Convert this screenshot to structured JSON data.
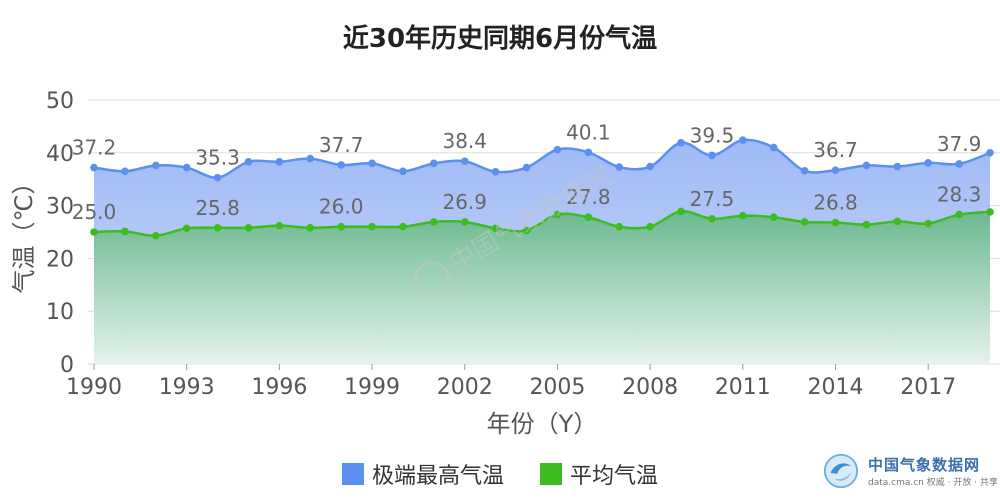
{
  "watermark": "中国气象数据网",
  "brand": {
    "name": "中国气象数据网",
    "url": "data.cma.cn 权威 · 开放 · 共享"
  },
  "colors": {
    "max_line": "#5b8ff0",
    "max_fill": "#aec3f5",
    "avg_line": "#3dbb1f",
    "avg_fill": "#7fc59f",
    "grid": "#dddddd",
    "axis_text": "#555555",
    "label_text": "#666666"
  },
  "chart_data": {
    "type": "area",
    "title": "近30年历史同期6月份气温",
    "xlabel": "年份（Y）",
    "ylabel": "气温（℃）",
    "ylim": [
      0,
      50
    ],
    "yticks": [
      0,
      10,
      20,
      30,
      40,
      50
    ],
    "xlim": [
      1990,
      2019
    ],
    "xticks": [
      1990,
      1993,
      1996,
      1999,
      2002,
      2005,
      2008,
      2011,
      2014,
      2017
    ],
    "grid": true,
    "legend_position": "bottom",
    "x": [
      1990,
      1991,
      1992,
      1993,
      1994,
      1995,
      1996,
      1997,
      1998,
      1999,
      2000,
      2001,
      2002,
      2003,
      2004,
      2005,
      2006,
      2007,
      2008,
      2009,
      2010,
      2011,
      2012,
      2013,
      2014,
      2015,
      2016,
      2017,
      2018,
      2019
    ],
    "series": [
      {
        "name": "极端最高气温",
        "values": [
          37.2,
          36.5,
          37.6,
          37.2,
          35.3,
          38.3,
          38.3,
          38.9,
          37.7,
          38.0,
          36.5,
          38.0,
          38.4,
          36.4,
          37.2,
          40.6,
          40.1,
          37.3,
          37.4,
          41.9,
          39.5,
          42.4,
          41.0,
          36.6,
          36.7,
          37.6,
          37.4,
          38.1,
          37.9,
          40.0
        ],
        "labels": [
          {
            "x": 1990,
            "text": "37.2"
          },
          {
            "x": 1994,
            "text": "35.3"
          },
          {
            "x": 1998,
            "text": "37.7"
          },
          {
            "x": 2002,
            "text": "38.4"
          },
          {
            "x": 2006,
            "text": "40.1"
          },
          {
            "x": 2010,
            "text": "39.5"
          },
          {
            "x": 2014,
            "text": "36.7"
          },
          {
            "x": 2018,
            "text": "37.9"
          }
        ]
      },
      {
        "name": "平均气温",
        "values": [
          25.0,
          25.1,
          24.3,
          25.7,
          25.8,
          25.8,
          26.2,
          25.8,
          26.0,
          26.0,
          26.0,
          26.9,
          26.9,
          25.7,
          25.3,
          28.3,
          27.8,
          26.0,
          26.0,
          28.9,
          27.5,
          28.1,
          27.8,
          26.9,
          26.8,
          26.4,
          27.0,
          26.6,
          28.3,
          28.8
        ],
        "labels": [
          {
            "x": 1990,
            "text": "25.0"
          },
          {
            "x": 1994,
            "text": "25.8"
          },
          {
            "x": 1998,
            "text": "26.0"
          },
          {
            "x": 2002,
            "text": "26.9"
          },
          {
            "x": 2006,
            "text": "27.8"
          },
          {
            "x": 2010,
            "text": "27.5"
          },
          {
            "x": 2014,
            "text": "26.8"
          },
          {
            "x": 2018,
            "text": "28.3"
          }
        ]
      }
    ]
  }
}
